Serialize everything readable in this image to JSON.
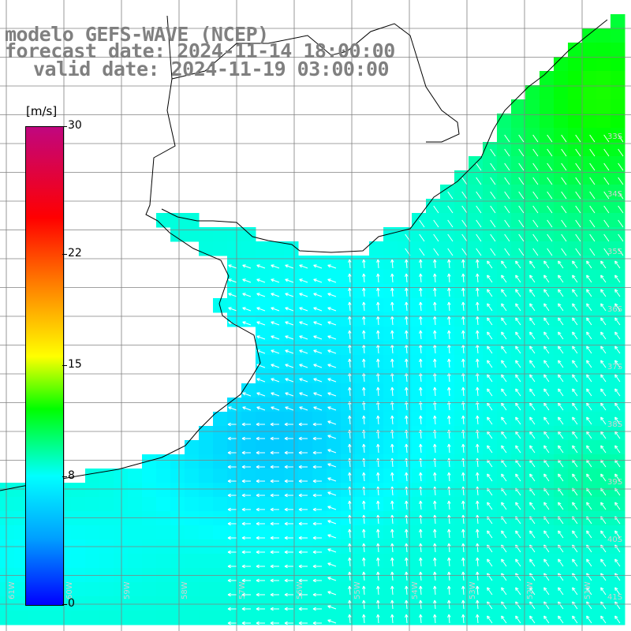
{
  "title": {
    "line1": "modelo GEFS-WAVE (NCEP)",
    "line2": "forecast date: 2024-11-14 18:00:00",
    "line3": "valid date: 2024-11-19 03:00:00"
  },
  "colorbar": {
    "unit": "[m/s]",
    "ticks": [
      "30",
      "22",
      "15",
      "8",
      "0"
    ],
    "tick_values": [
      30,
      22,
      15,
      8,
      0
    ],
    "range": [
      0,
      30
    ],
    "colors": [
      "#c0067f",
      "#ff0000",
      "#ff7f00",
      "#ffff00",
      "#00ff00",
      "#00ffff",
      "#00a0ff",
      "#0000ff"
    ]
  },
  "map": {
    "field": "wind speed with direction arrows",
    "land_color": "#ffffff",
    "grid_color": "#808080",
    "lat_labels": [
      "33S",
      "34S",
      "35S",
      "36S",
      "37S",
      "38S",
      "39S",
      "40S",
      "41S"
    ],
    "lon_labels": [
      "61W",
      "60W",
      "59W",
      "58W",
      "57W",
      "56W",
      "55W",
      "54W",
      "53W",
      "52W",
      "51W"
    ]
  }
}
